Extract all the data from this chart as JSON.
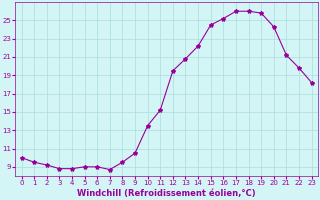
{
  "hours": [
    0,
    1,
    2,
    3,
    4,
    5,
    6,
    7,
    8,
    9,
    10,
    11,
    12,
    13,
    14,
    15,
    16,
    17,
    18,
    19,
    20,
    21,
    22,
    23
  ],
  "values": [
    10.0,
    9.5,
    9.2,
    8.8,
    8.8,
    9.0,
    9.0,
    8.7,
    9.5,
    10.5,
    13.5,
    15.2,
    19.5,
    20.8,
    22.2,
    24.5,
    25.2,
    26.0,
    26.0,
    25.8,
    24.3,
    21.2,
    19.8,
    18.2
  ],
  "line_color": "#990099",
  "marker": "*",
  "marker_size": 3,
  "bg_color": "#d4f5f5",
  "grid_color": "#aadddd",
  "tick_color": "#990099",
  "label_color": "#990099",
  "xlabel": "Windchill (Refroidissement éolien,°C)",
  "ylim": [
    8,
    27
  ],
  "yticks": [
    9,
    11,
    13,
    15,
    17,
    19,
    21,
    23,
    25
  ],
  "xlim": [
    -0.5,
    23.5
  ],
  "tick_fontsize": 5,
  "xlabel_fontsize": 6
}
